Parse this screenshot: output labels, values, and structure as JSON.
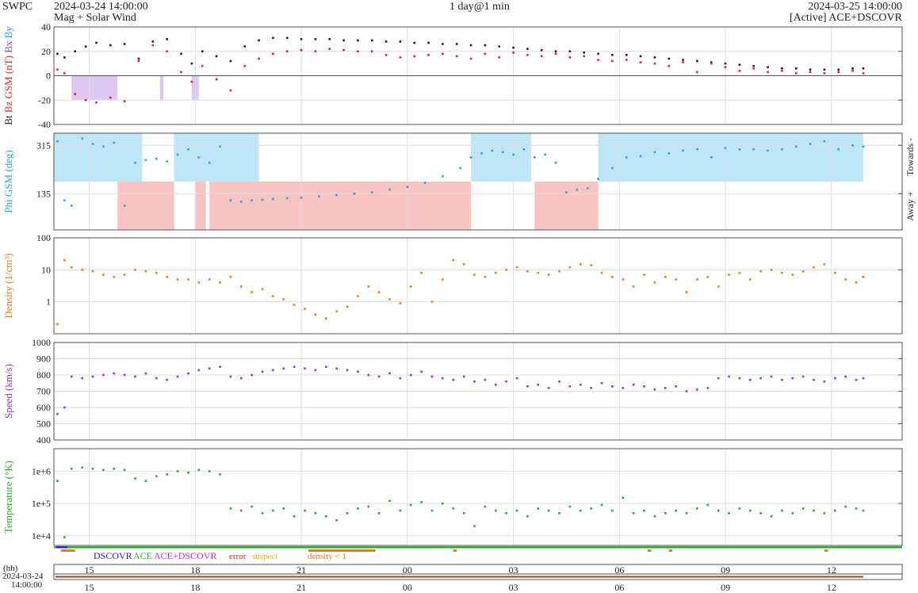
{
  "header": {
    "org": "SWPC",
    "start_time": "2024-03-24 14:00:00",
    "subtitle": "Mag + Solar Wind",
    "resolution": "1 day@1 min",
    "end_time": "2024-03-25 14:00:00",
    "source": "[Active] ACE+DSCOVR"
  },
  "chart_data": [
    {
      "id": "mag",
      "type": "scatter",
      "ylabel_parts": [
        {
          "text": "Bt",
          "color": "#222222"
        },
        {
          "text": "Bz GSM (nT)",
          "color": "#e8202a"
        },
        {
          "text": "Bx",
          "color": "#8a3ce0"
        },
        {
          "text": "By",
          "color": "#1fa8e6"
        }
      ],
      "ylim": [
        -40,
        40
      ],
      "yticks": [
        40,
        20,
        0,
        -20,
        -40
      ],
      "grid": true,
      "zero_line": true,
      "x_hours": [
        0,
        22.9
      ],
      "series": [
        {
          "name": "Bt",
          "color": "#222222",
          "x": [
            0.1,
            0.3,
            0.6,
            0.9,
            1.2,
            1.6,
            2.0,
            2.4,
            2.8,
            3.2,
            3.6,
            3.9,
            4.2,
            4.6,
            5.0,
            5.4,
            5.8,
            6.2,
            6.6,
            7.0,
            7.4,
            7.8,
            8.2,
            8.6,
            9.0,
            9.4,
            9.8,
            10.2,
            10.6,
            11.0,
            11.4,
            11.8,
            12.2,
            12.6,
            13.0,
            13.4,
            13.8,
            14.2,
            14.6,
            15.0,
            15.4,
            15.8,
            16.2,
            16.6,
            17.0,
            17.4,
            17.8,
            18.2,
            18.6,
            19.0,
            19.4,
            19.8,
            20.2,
            20.6,
            21.0,
            21.4,
            21.8,
            22.2,
            22.6,
            22.9
          ],
          "y": [
            18,
            15,
            20,
            24,
            27,
            25,
            26,
            14,
            28,
            30,
            18,
            10,
            20,
            16,
            12,
            24,
            29,
            31,
            31,
            30,
            30,
            30,
            29,
            29,
            29,
            28,
            28,
            27,
            27,
            26,
            26,
            25,
            25,
            24,
            23,
            22,
            21,
            20,
            20,
            19,
            18,
            17,
            17,
            16,
            15,
            14,
            13,
            12,
            11,
            10,
            9,
            8,
            7,
            6,
            6,
            5,
            5,
            5,
            6,
            6
          ]
        },
        {
          "name": "Bz GSM",
          "color": "#e8202a",
          "x": [
            0.1,
            0.3,
            0.6,
            0.9,
            1.2,
            1.6,
            2.0,
            2.4,
            2.8,
            3.2,
            3.6,
            3.9,
            4.2,
            4.6,
            5.0,
            5.4,
            5.8,
            6.2,
            6.6,
            7.0,
            7.4,
            7.8,
            8.2,
            8.6,
            9.0,
            9.4,
            9.8,
            10.2,
            10.6,
            11.0,
            11.4,
            11.8,
            12.2,
            12.6,
            13.0,
            13.4,
            13.8,
            14.2,
            14.6,
            15.0,
            15.4,
            15.8,
            16.2,
            16.6,
            17.0,
            17.4,
            17.8,
            18.2,
            18.6,
            19.0,
            19.4,
            19.8,
            20.2,
            20.6,
            21.0,
            21.4,
            21.8,
            22.2,
            22.6,
            22.9
          ],
          "y": [
            5,
            2,
            -15,
            -20,
            -22,
            -18,
            -21,
            12,
            25,
            20,
            3,
            -5,
            8,
            -3,
            -12,
            8,
            14,
            18,
            20,
            21,
            20,
            22,
            21,
            20,
            20,
            17,
            15,
            16,
            17,
            18,
            16,
            14,
            18,
            15,
            19,
            17,
            16,
            18,
            15,
            16,
            13,
            12,
            13,
            11,
            10,
            8,
            11,
            3,
            10,
            7,
            4,
            6,
            3,
            4,
            2,
            3,
            2,
            3,
            4,
            2
          ]
        }
      ],
      "shaded_negative_bz": [
        [
          0.5,
          1.8
        ],
        [
          3.0,
          3.1
        ],
        [
          3.9,
          4.1
        ]
      ]
    },
    {
      "id": "phi",
      "type": "scatter",
      "ylabel": "Phi GSM (deg)",
      "right_labels": [
        "Away +",
        "Towards -"
      ],
      "ylim": [
        0,
        360
      ],
      "yticks": [
        315,
        135
      ],
      "grid": true,
      "x_hours": [
        0,
        22.9
      ],
      "series": [
        {
          "name": "Phi GSM",
          "color": "#1fa8e6",
          "x": [
            0.1,
            0.3,
            0.5,
            0.8,
            1.1,
            1.4,
            1.7,
            2.0,
            2.3,
            2.6,
            2.9,
            3.2,
            3.5,
            3.8,
            4.1,
            4.4,
            4.7,
            5.0,
            5.3,
            5.6,
            5.9,
            6.2,
            6.6,
            7.0,
            7.5,
            8.0,
            8.5,
            9.0,
            9.5,
            10.0,
            10.5,
            11.0,
            11.5,
            11.8,
            12.1,
            12.4,
            12.7,
            13.0,
            13.3,
            13.6,
            13.9,
            14.2,
            14.5,
            14.8,
            15.1,
            15.4,
            15.8,
            16.2,
            16.6,
            17.0,
            17.4,
            17.8,
            18.2,
            18.6,
            19.0,
            19.4,
            19.8,
            20.2,
            20.6,
            21.0,
            21.4,
            21.8,
            22.2,
            22.6,
            22.9
          ],
          "y": [
            330,
            110,
            90,
            340,
            320,
            310,
            325,
            90,
            250,
            260,
            265,
            255,
            280,
            300,
            270,
            250,
            310,
            110,
            105,
            110,
            112,
            115,
            118,
            120,
            125,
            130,
            135,
            140,
            150,
            160,
            175,
            200,
            230,
            270,
            285,
            295,
            290,
            280,
            300,
            270,
            280,
            250,
            140,
            150,
            155,
            190,
            230,
            270,
            275,
            290,
            285,
            295,
            300,
            270,
            305,
            300,
            300,
            295,
            300,
            310,
            320,
            330,
            300,
            315,
            310
          ]
        }
      ],
      "towards_bands": [
        [
          0.0,
          2.5
        ],
        [
          3.4,
          5.8
        ],
        [
          11.8,
          13.5
        ],
        [
          15.4,
          22.9
        ]
      ],
      "away_bands": [
        [
          1.8,
          3.4
        ],
        [
          4.0,
          4.3
        ],
        [
          4.4,
          11.8
        ],
        [
          13.6,
          15.4
        ]
      ]
    },
    {
      "id": "density",
      "type": "scatter",
      "ylabel": "Density (1/cm³)",
      "yscale": "log",
      "ylim": [
        0.1,
        100
      ],
      "yticks": [
        100,
        10,
        1
      ],
      "ytick_labels": [
        "100",
        "10",
        "1"
      ],
      "grid": true,
      "x_hours": [
        0,
        22.9
      ],
      "series": [
        {
          "name": "Density",
          "color": "#f07818",
          "x": [
            0.1,
            0.3,
            0.5,
            0.8,
            1.1,
            1.4,
            1.7,
            2.0,
            2.3,
            2.6,
            2.9,
            3.2,
            3.5,
            3.8,
            4.1,
            4.4,
            4.7,
            5.0,
            5.3,
            5.6,
            5.9,
            6.2,
            6.5,
            6.8,
            7.1,
            7.4,
            7.7,
            8.0,
            8.3,
            8.6,
            8.9,
            9.2,
            9.5,
            9.8,
            10.1,
            10.4,
            10.7,
            11.0,
            11.3,
            11.6,
            11.9,
            12.2,
            12.5,
            12.8,
            13.1,
            13.4,
            13.7,
            14.0,
            14.3,
            14.6,
            14.9,
            15.2,
            15.5,
            15.8,
            16.1,
            16.4,
            16.7,
            17.0,
            17.3,
            17.6,
            17.9,
            18.2,
            18.5,
            18.8,
            19.1,
            19.4,
            19.7,
            20.0,
            20.3,
            20.6,
            20.9,
            21.2,
            21.5,
            21.8,
            22.1,
            22.4,
            22.7,
            22.9
          ],
          "y": [
            0.2,
            20,
            12,
            10,
            9,
            7,
            6,
            7,
            10,
            9,
            8,
            6,
            5,
            5,
            4,
            5,
            4,
            6,
            3,
            2,
            2.5,
            1.5,
            1.2,
            0.8,
            0.6,
            0.4,
            0.3,
            0.5,
            0.7,
            1.5,
            3,
            2,
            1.2,
            0.9,
            3,
            8,
            1,
            5,
            20,
            15,
            7,
            6,
            8,
            10,
            12,
            9,
            8,
            7,
            9,
            12,
            15,
            14,
            8,
            6,
            5,
            3,
            7,
            4,
            6,
            5,
            2,
            5,
            6,
            3,
            7,
            8,
            5,
            9,
            10,
            8,
            7,
            9,
            12,
            15,
            8,
            5,
            4,
            6
          ]
        }
      ]
    },
    {
      "id": "speed",
      "type": "scatter",
      "ylabel": "Speed (km/s)",
      "ylim": [
        400,
        1000
      ],
      "yticks": [
        1000,
        900,
        800,
        700,
        600,
        500,
        400
      ],
      "grid": true,
      "x_hours": [
        0,
        22.9
      ],
      "series": [
        {
          "name": "Speed",
          "color": "#9a32d8",
          "x": [
            0.1,
            0.3,
            0.5,
            0.8,
            1.1,
            1.4,
            1.7,
            2.0,
            2.3,
            2.6,
            2.9,
            3.2,
            3.5,
            3.8,
            4.1,
            4.4,
            4.7,
            5.0,
            5.3,
            5.6,
            5.9,
            6.2,
            6.5,
            6.8,
            7.1,
            7.4,
            7.7,
            8.0,
            8.3,
            8.6,
            8.9,
            9.2,
            9.5,
            9.8,
            10.1,
            10.4,
            10.7,
            11.0,
            11.3,
            11.6,
            11.9,
            12.2,
            12.5,
            12.8,
            13.1,
            13.4,
            13.7,
            14.0,
            14.3,
            14.6,
            14.9,
            15.2,
            15.5,
            15.8,
            16.1,
            16.4,
            16.7,
            17.0,
            17.3,
            17.6,
            17.9,
            18.2,
            18.5,
            18.8,
            19.1,
            19.4,
            19.7,
            20.0,
            20.3,
            20.6,
            20.9,
            21.2,
            21.5,
            21.8,
            22.1,
            22.4,
            22.7,
            22.9
          ],
          "y": [
            560,
            600,
            790,
            780,
            790,
            800,
            810,
            800,
            790,
            810,
            780,
            770,
            790,
            810,
            830,
            840,
            850,
            790,
            780,
            800,
            820,
            830,
            840,
            850,
            840,
            830,
            850,
            840,
            830,
            820,
            800,
            790,
            810,
            780,
            800,
            820,
            790,
            780,
            770,
            790,
            760,
            770,
            740,
            760,
            780,
            730,
            740,
            720,
            760,
            730,
            740,
            720,
            750,
            730,
            720,
            740,
            730,
            710,
            720,
            730,
            700,
            710,
            720,
            780,
            790,
            780,
            770,
            780,
            790,
            770,
            780,
            790,
            770,
            760,
            780,
            790,
            770,
            780
          ]
        }
      ]
    },
    {
      "id": "temperature",
      "type": "scatter",
      "ylabel": "Temperature (°K)",
      "yscale": "log",
      "ylim": [
        5000,
        5000000
      ],
      "yticks": [
        1000000,
        100000,
        10000
      ],
      "ytick_labels": [
        "1e+6",
        "1e+5",
        "1e+4"
      ],
      "grid": true,
      "x_hours": [
        0,
        22.9
      ],
      "series": [
        {
          "name": "Temperature",
          "color": "#22b022",
          "x": [
            0.1,
            0.3,
            0.5,
            0.8,
            1.1,
            1.4,
            1.7,
            2.0,
            2.3,
            2.6,
            2.9,
            3.2,
            3.5,
            3.8,
            4.1,
            4.4,
            4.7,
            5.0,
            5.3,
            5.6,
            5.9,
            6.2,
            6.5,
            6.8,
            7.1,
            7.4,
            7.7,
            8.0,
            8.3,
            8.6,
            8.9,
            9.2,
            9.5,
            9.8,
            10.1,
            10.4,
            10.7,
            11.0,
            11.3,
            11.6,
            11.9,
            12.2,
            12.5,
            12.8,
            13.1,
            13.4,
            13.7,
            14.0,
            14.3,
            14.6,
            14.9,
            15.2,
            15.5,
            15.8,
            16.1,
            16.4,
            16.7,
            17.0,
            17.3,
            17.6,
            17.9,
            18.2,
            18.5,
            18.8,
            19.1,
            19.4,
            19.7,
            20.0,
            20.3,
            20.6,
            20.9,
            21.2,
            21.5,
            21.8,
            22.1,
            22.4,
            22.7,
            22.9
          ],
          "y": [
            500000,
            9000,
            1200000,
            1300000,
            1200000,
            1100000,
            1200000,
            1100000,
            600000,
            500000,
            700000,
            800000,
            1000000,
            900000,
            1100000,
            1000000,
            800000,
            70000,
            60000,
            80000,
            50000,
            60000,
            70000,
            40000,
            60000,
            50000,
            40000,
            30000,
            50000,
            70000,
            80000,
            50000,
            120000,
            60000,
            90000,
            110000,
            60000,
            100000,
            70000,
            50000,
            20000,
            80000,
            60000,
            50000,
            60000,
            40000,
            70000,
            60000,
            50000,
            80000,
            60000,
            70000,
            90000,
            60000,
            150000,
            50000,
            60000,
            40000,
            50000,
            60000,
            50000,
            70000,
            90000,
            60000,
            50000,
            70000,
            60000,
            50000,
            40000,
            60000,
            50000,
            70000,
            60000,
            50000,
            60000,
            80000,
            70000,
            60000
          ]
        }
      ]
    }
  ],
  "x_axis": {
    "tick_hours": [
      1,
      4,
      7,
      10,
      13,
      16,
      19,
      22
    ],
    "tick_labels": [
      "15",
      "18",
      "21",
      "00",
      "03",
      "06",
      "09",
      "12"
    ],
    "unit_label": "(hh)",
    "start_date": "2024-03-24",
    "start_time": "14:00:00"
  },
  "legend": {
    "items": [
      {
        "text": "DSCOVR",
        "color": "#2020d0"
      },
      {
        "text": "ACE",
        "color": "#22b022"
      },
      {
        "text": "ACE+DSCOVR",
        "color": "#e020e0"
      },
      {
        "text": "error",
        "color": "#e8202a"
      },
      {
        "text": "suspect",
        "color": "#e8b400"
      },
      {
        "text": "density < 1",
        "color": "#f07818"
      }
    ]
  },
  "colors": {
    "grid": "#dddddd",
    "frame": "#555555",
    "towards_band": "#bfe6f7",
    "away_band": "#f8c4c4",
    "negative_bz_band": "#dcc8f0"
  }
}
